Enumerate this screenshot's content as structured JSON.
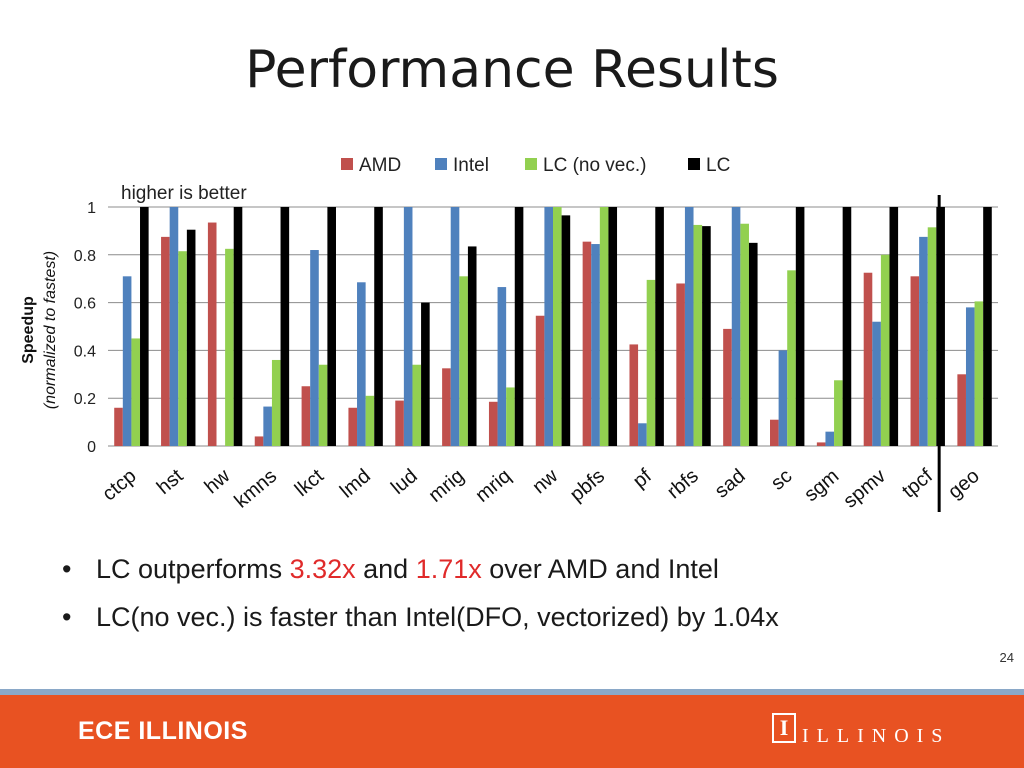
{
  "slide": {
    "title": "Performance Results",
    "bullets": [
      {
        "parts": [
          {
            "text": "LC outperforms ",
            "hl": false
          },
          {
            "text": "3.32x",
            "hl": true
          },
          {
            "text": " and ",
            "hl": false
          },
          {
            "text": "1.71x",
            "hl": true
          },
          {
            "text": " over AMD and Intel",
            "hl": false
          }
        ]
      },
      {
        "parts": [
          {
            "text": "LC(no vec.) is faster than Intel(DFO, vectorized) by 1.04x",
            "hl": false
          }
        ]
      }
    ],
    "page_number": "24",
    "footer_left": "ECE ILLINOIS",
    "footer_logo": "I",
    "footer_right": "ILLINOIS"
  },
  "chart_data": {
    "type": "bar",
    "annotation": "higher is better",
    "ylabel": "Speedup",
    "ylabel_sub": "(normalized to fastest)",
    "ylim": [
      0,
      1
    ],
    "yticks": [
      0,
      0.2,
      0.4,
      0.6,
      0.8,
      1
    ],
    "ytick_labels": [
      "0",
      "0.2",
      "0.4",
      "0.6",
      "0.8",
      "1"
    ],
    "grid": true,
    "legend_position": "top",
    "categories": [
      "ctcp",
      "hst",
      "hw",
      "kmns",
      "lkct",
      "lmd",
      "lud",
      "mrig",
      "mriq",
      "nw",
      "pbfs",
      "pf",
      "rbfs",
      "sad",
      "sc",
      "sgm",
      "spmv",
      "tpcf",
      "geo"
    ],
    "separator_before": "geo",
    "series": [
      {
        "name": "AMD",
        "color": "#c0504d",
        "values": [
          0.16,
          0.875,
          0.935,
          0.04,
          0.25,
          0.16,
          0.19,
          0.325,
          0.185,
          0.545,
          0.855,
          0.425,
          0.68,
          0.49,
          0.11,
          0.015,
          0.725,
          0.71,
          0.3
        ]
      },
      {
        "name": "Intel",
        "color": "#4f81bd",
        "values": [
          0.71,
          1.0,
          0.0,
          0.165,
          0.82,
          0.685,
          1.0,
          1.0,
          0.665,
          1.0,
          0.845,
          0.095,
          1.0,
          1.0,
          0.4,
          0.06,
          0.52,
          0.875,
          0.58
        ]
      },
      {
        "name": "LC (no vec.)",
        "color": "#92d050",
        "values": [
          0.45,
          0.815,
          0.825,
          0.36,
          0.34,
          0.21,
          0.34,
          0.71,
          0.245,
          1.0,
          1.0,
          0.695,
          0.925,
          0.93,
          0.735,
          0.275,
          0.8,
          0.915,
          0.605
        ]
      },
      {
        "name": "LC",
        "color": "#000000",
        "values": [
          1.0,
          0.905,
          1.0,
          1.0,
          1.0,
          1.0,
          0.6,
          0.835,
          1.0,
          0.965,
          1.0,
          1.0,
          0.92,
          0.85,
          1.0,
          1.0,
          1.0,
          1.0,
          1.0
        ]
      }
    ]
  }
}
